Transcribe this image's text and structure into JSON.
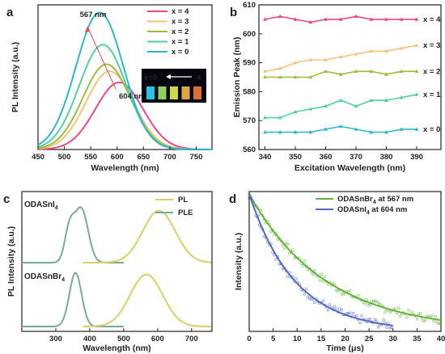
{
  "figure": {
    "panels": [
      "a",
      "b",
      "c",
      "d"
    ],
    "colors": {
      "x4": "#e8488a",
      "x3": "#f5c37a",
      "x2": "#9cbd3b",
      "x1": "#4fcfa6",
      "x0": "#2bb7cf",
      "pl": "#d8cf63",
      "ple": "#76aa9c",
      "d_br": "#63b43b",
      "d_i": "#5668c2"
    }
  },
  "chart_data": [
    {
      "panel": "a",
      "type": "line",
      "xlabel": "Wavelength (nm)",
      "ylabel": "PL Intensity (a.u.)",
      "xlim": [
        450,
        780
      ],
      "xticks": [
        450,
        500,
        550,
        600,
        650,
        700,
        750
      ],
      "series": [
        {
          "name": "x = 4",
          "peak": 604,
          "height": 0.48,
          "sigma": 45
        },
        {
          "name": "x = 3",
          "peak": 586,
          "height": 0.56,
          "sigma": 45
        },
        {
          "name": "x = 2",
          "peak": 580,
          "height": 0.61,
          "sigma": 45
        },
        {
          "name": "x = 1",
          "peak": 573,
          "height": 0.75,
          "sigma": 45
        },
        {
          "name": "x = 0",
          "peak": 567,
          "height": 0.98,
          "sigma": 45
        }
      ],
      "annotations": {
        "top": "567 nm",
        "bottom": "604 nm"
      },
      "inset": {
        "left": "x=0",
        "right": "4"
      }
    },
    {
      "panel": "b",
      "type": "line",
      "xlabel": "Excitation Wavelength (nm)",
      "ylabel": "Emission Peak (nm)",
      "xlim": [
        338,
        398
      ],
      "ylim": [
        560,
        610
      ],
      "xticks": [
        340,
        350,
        360,
        370,
        380,
        390
      ],
      "yticks": [
        560,
        570,
        580,
        590,
        600,
        610
      ],
      "x": [
        340,
        345,
        350,
        355,
        360,
        365,
        370,
        375,
        380,
        385,
        390
      ],
      "series": [
        {
          "name": "x = 4",
          "values": [
            605,
            606,
            605,
            604,
            605,
            605,
            606,
            605,
            605,
            605,
            605
          ]
        },
        {
          "name": "x = 3",
          "values": [
            587,
            588,
            590,
            591,
            591,
            592,
            593,
            594,
            594,
            595,
            596
          ]
        },
        {
          "name": "x = 2",
          "values": [
            585,
            585,
            585,
            585,
            587,
            586,
            587,
            587,
            586,
            587,
            587
          ]
        },
        {
          "name": "x = 1",
          "values": [
            571,
            571,
            573,
            574,
            575,
            577,
            575,
            577,
            577,
            578,
            579
          ]
        },
        {
          "name": "x = 0",
          "values": [
            566,
            566,
            566,
            566,
            567,
            568,
            567,
            566,
            566,
            567,
            567
          ]
        }
      ]
    },
    {
      "panel": "c",
      "type": "line",
      "xlabel": "Wavelength (nm)",
      "ylabel": "PL Intensity (a.u.)",
      "xlim": [
        200,
        760
      ],
      "xticks": [
        300,
        400,
        500,
        600,
        700
      ],
      "legend": [
        "PL",
        "PLE"
      ],
      "compounds": [
        {
          "label": "ODASnI",
          "subscript": "4",
          "ple": [
            {
              "center": 340,
              "height": 0.55,
              "sigma": 14
            },
            {
              "center": 375,
              "height": 0.95,
              "sigma": 20
            }
          ],
          "pl": {
            "center": 604,
            "height": 0.92,
            "sigma": 48
          }
        },
        {
          "label": "ODASnBr",
          "subscript": "4",
          "ple": [
            {
              "center": 358,
              "height": 0.95,
              "sigma": 18
            }
          ],
          "pl": {
            "center": 567,
            "height": 0.92,
            "sigma": 48
          }
        }
      ]
    },
    {
      "panel": "d",
      "type": "scatter",
      "xlabel": "Time (μs)",
      "ylabel": "Intensity (a.u.)",
      "xlim": [
        0,
        40
      ],
      "xticks": [
        0,
        5,
        10,
        15,
        20,
        25,
        30,
        35,
        40
      ],
      "series": [
        {
          "name": "ODASnBr",
          "subscript": "4",
          "suffix": " at 567 nm",
          "tau": 16,
          "tmax": 40
        },
        {
          "name": "ODASnI",
          "subscript": "4",
          "suffix": " at 604 nm",
          "tau": 9.5,
          "tmax": 30
        }
      ]
    }
  ]
}
